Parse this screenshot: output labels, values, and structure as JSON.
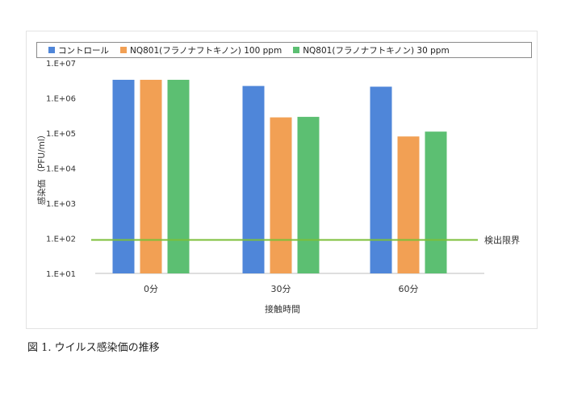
{
  "caption": "図 1. ウイルス感染価の推移",
  "chart_data": {
    "type": "bar",
    "log_scale": true,
    "ylim": [
      10,
      10000000
    ],
    "yticks": [
      "1.E+01",
      "1.E+02",
      "1.E+03",
      "1.E+04",
      "1.E+05",
      "1.E+06",
      "1.E+07"
    ],
    "ylabel": "感染価 （PFU/ml）",
    "xlabel": "接触時間",
    "categories": [
      "0分",
      "30分",
      "60分"
    ],
    "series": [
      {
        "name": "コントロール",
        "color": "#4f86d9",
        "values": [
          3300000,
          2200000,
          2100000
        ]
      },
      {
        "name": "NQ801(フラノナフトキノン) 100 ppm",
        "color": "#f2a054",
        "values": [
          3300000,
          280000,
          80000
        ]
      },
      {
        "name": "NQ801(フラノナフトキノン) 30 ppm",
        "color": "#5cbf72",
        "values": [
          3300000,
          290000,
          110000
        ]
      }
    ],
    "reference_line": {
      "label": "検出限界",
      "value": 90,
      "color": "#7cbf3a"
    },
    "legend_position": "top",
    "grid": false
  }
}
